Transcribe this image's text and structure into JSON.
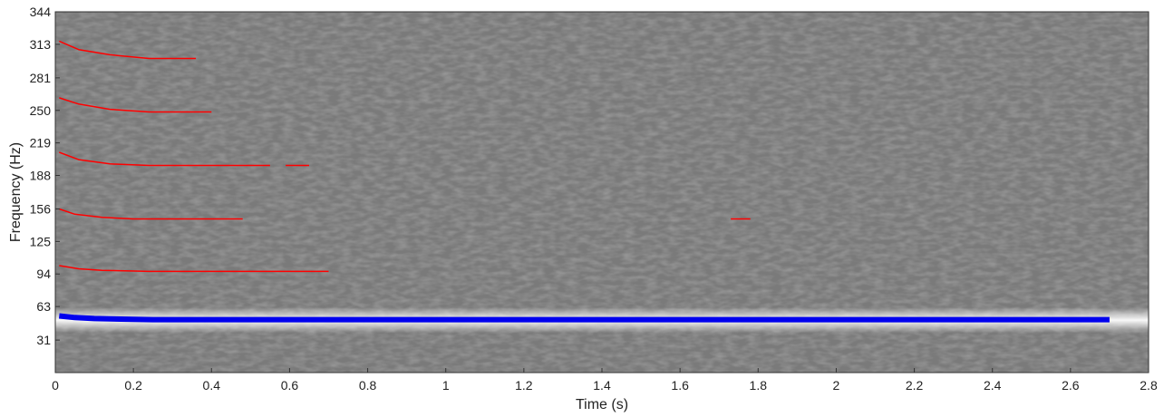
{
  "chart_data": {
    "type": "heatmap",
    "title": "",
    "xlabel": "Time (s)",
    "ylabel": "Frequency (Hz)",
    "xlim": [
      0,
      2.8
    ],
    "ylim": [
      0,
      344
    ],
    "xticks": [
      "0",
      "0.2",
      "0.4",
      "0.6",
      "0.8",
      "1",
      "1.2",
      "1.4",
      "1.6",
      "1.8",
      "2",
      "2.2",
      "2.4",
      "2.6",
      "2.8"
    ],
    "yticks": [
      "31",
      "63",
      "94",
      "125",
      "156",
      "188",
      "219",
      "250",
      "281",
      "313",
      "344"
    ],
    "colormap": "grayscale spectrogram",
    "bright_bands_hz": [
      50
    ],
    "series": [
      {
        "color": "#0000ee",
        "style": "thick line",
        "points": [
          [
            0.01,
            54
          ],
          [
            0.05,
            52.5
          ],
          [
            0.1,
            51.5
          ],
          [
            0.2,
            50.8
          ],
          [
            0.25,
            50.5
          ],
          [
            2.7,
            50.5
          ]
        ]
      },
      {
        "color": "#ff0000",
        "points": [
          [
            0.01,
            102
          ],
          [
            0.06,
            99
          ],
          [
            0.12,
            97.5
          ],
          [
            0.24,
            96.5
          ],
          [
            0.7,
            96.5
          ]
        ]
      },
      {
        "color": "#ff0000",
        "points": [
          [
            0.01,
            156
          ],
          [
            0.05,
            151
          ],
          [
            0.12,
            148
          ],
          [
            0.2,
            146.5
          ],
          [
            0.48,
            146.5
          ]
        ]
      },
      {
        "color": "#ff0000",
        "points": [
          [
            1.73,
            146.5
          ],
          [
            1.78,
            146.5
          ]
        ]
      },
      {
        "color": "#ff0000",
        "points": [
          [
            0.01,
            210
          ],
          [
            0.06,
            203
          ],
          [
            0.14,
            199
          ],
          [
            0.24,
            197.5
          ],
          [
            0.55,
            197.5
          ]
        ]
      },
      {
        "color": "#ff0000",
        "points": [
          [
            0.59,
            197.5
          ],
          [
            0.65,
            197.5
          ]
        ]
      },
      {
        "color": "#ff0000",
        "points": [
          [
            0.01,
            262
          ],
          [
            0.06,
            256
          ],
          [
            0.14,
            251
          ],
          [
            0.24,
            248.5
          ],
          [
            0.4,
            248.5
          ]
        ]
      },
      {
        "color": "#ff0000",
        "points": [
          [
            0.01,
            316
          ],
          [
            0.06,
            308
          ],
          [
            0.14,
            303
          ],
          [
            0.24,
            299.5
          ],
          [
            0.36,
            299.5
          ]
        ]
      }
    ]
  }
}
